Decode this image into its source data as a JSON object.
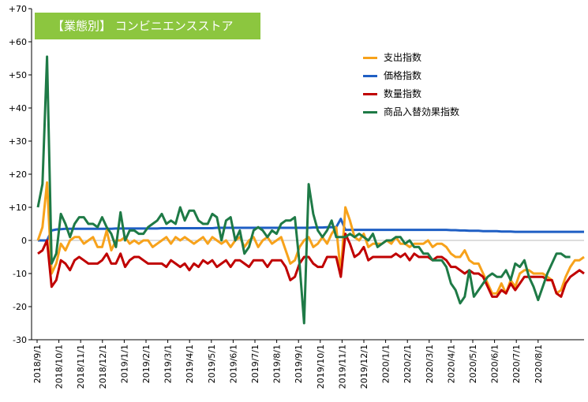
{
  "title": "【業態別】 コンビニエンスストア",
  "colors": {
    "支出指数": "#f7a21b",
    "価格指数": "#1f5fc4",
    "数量指数": "#c00000",
    "商品入替効果指数": "#1e7a46"
  },
  "chart_data": {
    "type": "line",
    "ylim": [
      -30,
      70
    ],
    "yticks": [
      "-30",
      "-20",
      "-10",
      "0",
      "+10",
      "+20",
      "+30",
      "+40",
      "+50",
      "+60",
      "+70"
    ],
    "grid": false,
    "legend_position": "top-right",
    "x_tick_labels": [
      "2018/9/1",
      "2018/10/1",
      "2018/11/1",
      "2018/12/1",
      "2019/1/1",
      "2019/2/1",
      "2019/3/1",
      "2019/4/1",
      "2019/5/1",
      "2019/6/1",
      "2019/7/1",
      "2019/8/1",
      "2019/9/1",
      "2019/10/1",
      "2019/11/1",
      "2019/12/1",
      "2020/1/1",
      "2020/2/1",
      "2020/3/1",
      "2020/4/1",
      "2020/5/1",
      "2020/6/1",
      "2020/7/1",
      "2020/8/1"
    ],
    "series": [
      {
        "name": "支出指数",
        "values": [
          0,
          4,
          17.5,
          -10,
          -7,
          -1,
          -3,
          0,
          1,
          1,
          -1,
          0,
          1,
          -2,
          -2,
          3,
          -3,
          0,
          0,
          1,
          -1,
          0,
          -1,
          0,
          0,
          -2,
          -1,
          0,
          1,
          -1,
          1,
          0,
          1,
          0,
          -1,
          0,
          1,
          -1,
          1,
          0,
          -1,
          0,
          -2,
          0,
          1,
          -2,
          0,
          1,
          -2,
          0,
          1,
          -1,
          0,
          1,
          -3,
          -7,
          -6,
          -2,
          0,
          1,
          -2,
          -1,
          1,
          -1,
          2,
          4,
          -10,
          10,
          6,
          1,
          0,
          2,
          -2,
          -1,
          -1,
          -1,
          0,
          -1,
          1,
          -1,
          -1,
          -2,
          -1,
          -1,
          -1,
          0,
          -2,
          -1,
          -1,
          -2,
          -4,
          -5,
          -5,
          -3,
          -6,
          -7,
          -7,
          -10,
          -13,
          -16,
          -16,
          -13,
          -16,
          -12,
          -14,
          -10,
          -9,
          -9,
          -10,
          -10,
          -10,
          -11,
          -12,
          -16,
          -15,
          -11,
          -8,
          -6,
          -6,
          -5
        ]
      },
      {
        "name": "価格指数",
        "values": [
          0,
          0,
          0,
          3,
          3.3,
          3.4,
          3.5,
          3.5,
          3.5,
          3.5,
          3.5,
          3.5,
          3.5,
          3.5,
          3.5,
          3.5,
          3.5,
          3.6,
          3.6,
          3.6,
          3.6,
          3.6,
          3.6,
          3.6,
          3.6,
          3.6,
          3.6,
          3.7,
          3.7,
          3.7,
          3.7,
          3.7,
          3.7,
          3.7,
          3.7,
          3.7,
          3.7,
          3.7,
          3.7,
          3.8,
          3.8,
          3.8,
          3.8,
          3.8,
          3.8,
          3.8,
          3.8,
          3.8,
          3.8,
          3.8,
          3.8,
          3.8,
          3.8,
          3.8,
          3.8,
          3.8,
          3.8,
          3.8,
          3.8,
          3.8,
          3.9,
          3.9,
          3.9,
          4,
          4,
          4,
          6.5,
          3.2,
          3.2,
          3.2,
          3.2,
          3.2,
          3.2,
          3.2,
          3.2,
          3.2,
          3.2,
          3.2,
          3.2,
          3.2,
          3.2,
          3.2,
          3.2,
          3.2,
          3.2,
          3.2,
          3.2,
          3.2,
          3.2,
          3.2,
          3.1,
          3.1,
          3,
          3,
          2.9,
          2.9,
          2.9,
          2.8,
          2.8,
          2.8,
          2.8,
          2.7,
          2.7,
          2.7,
          2.6,
          2.6,
          2.6,
          2.6,
          2.6,
          2.6,
          2.6,
          2.6,
          2.6,
          2.6,
          2.6,
          2.6,
          2.6,
          2.6,
          2.6,
          2.6
        ]
      },
      {
        "name": "数量指数",
        "values": [
          -4,
          -3,
          0,
          -14,
          -12,
          -6,
          -7,
          -9,
          -6,
          -5,
          -6,
          -7,
          -7,
          -7,
          -6,
          -4,
          -7,
          -7,
          -4,
          -8,
          -6,
          -5,
          -5,
          -6,
          -7,
          -7,
          -7,
          -7,
          -8,
          -6,
          -7,
          -8,
          -7,
          -9,
          -7,
          -8,
          -6,
          -7,
          -6,
          -8,
          -7,
          -6,
          -8,
          -6,
          -6,
          -7,
          -8,
          -6,
          -6,
          -6,
          -8,
          -6,
          -6,
          -6,
          -8,
          -12,
          -11,
          -7,
          -5,
          -5,
          -7,
          -8,
          -8,
          -5,
          -5,
          -5,
          -11,
          2,
          -1,
          -5,
          -4,
          -2,
          -6,
          -5,
          -5,
          -5,
          -5,
          -5,
          -4,
          -5,
          -4,
          -6,
          -4,
          -5,
          -5,
          -5,
          -6,
          -5,
          -5,
          -6,
          -8,
          -8,
          -9,
          -10,
          -9,
          -10,
          -10,
          -11,
          -14,
          -17,
          -17,
          -15,
          -16,
          -13,
          -15,
          -13,
          -11,
          -11,
          -11,
          -11,
          -11,
          -12,
          -12,
          -16,
          -17,
          -13,
          -11,
          -10,
          -9,
          -10
        ]
      },
      {
        "name": "商品入替効果指数",
        "values": [
          10,
          17,
          55.5,
          -7,
          -4,
          8,
          5,
          1,
          5,
          7,
          7,
          5,
          5,
          4,
          7,
          4,
          2,
          -2,
          8.5,
          0,
          3,
          3,
          2,
          2,
          4,
          5,
          6,
          8,
          5,
          6,
          5,
          10,
          6,
          9,
          9,
          6,
          5,
          5,
          8,
          7,
          0,
          6,
          7,
          0,
          3,
          -4,
          -2,
          3,
          4,
          3,
          1,
          3,
          2,
          5,
          6,
          6,
          7,
          -7,
          -25,
          17,
          8,
          3,
          1,
          3,
          6,
          1,
          1,
          1,
          2,
          1,
          2,
          1,
          0,
          2,
          -2,
          -1,
          0,
          0,
          1,
          1,
          -1,
          0,
          -2,
          -2,
          -4,
          -4,
          -6,
          -6,
          -6,
          -8,
          -13,
          -15,
          -19,
          -17,
          -9,
          -17,
          -15,
          -13,
          -11,
          -10,
          -11,
          -11,
          -9,
          -12,
          -7,
          -8,
          -6,
          -11,
          -14,
          -18,
          -14,
          -10,
          -7,
          -4,
          -4,
          -5,
          -5
        ]
      }
    ]
  }
}
